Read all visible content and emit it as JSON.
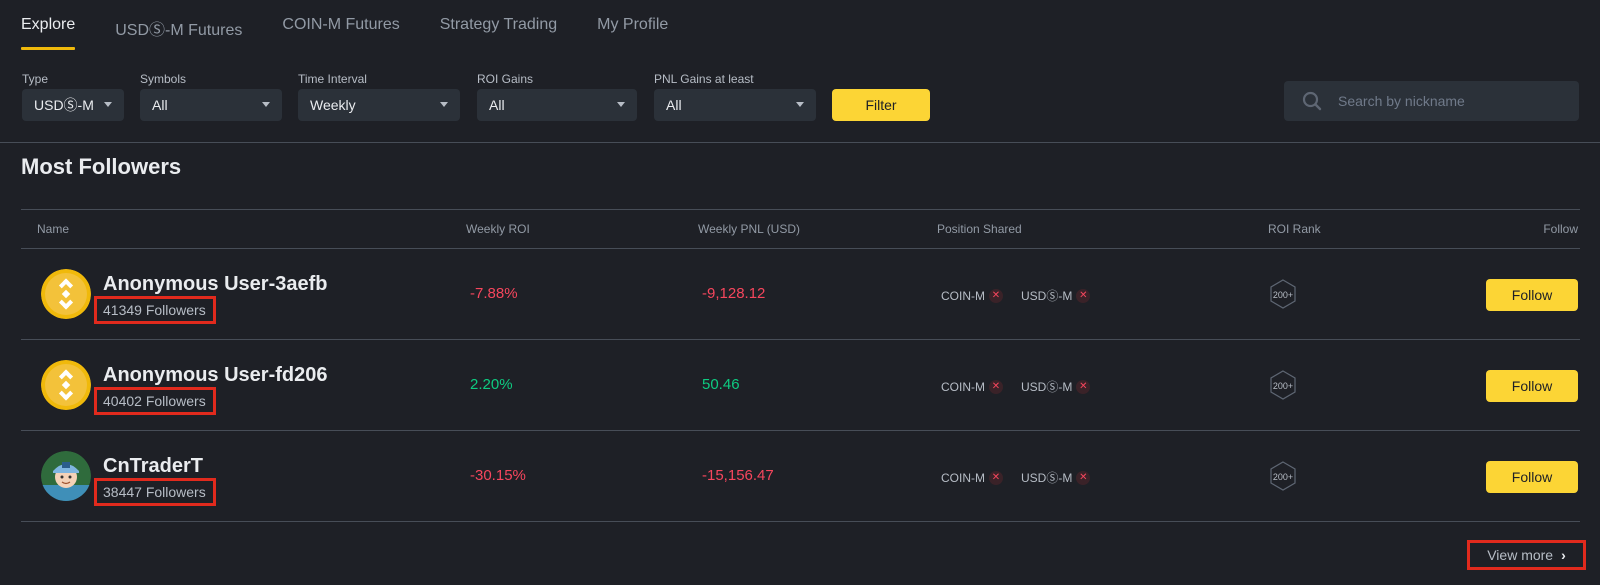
{
  "tabs": [
    {
      "label": "Explore",
      "active": true
    },
    {
      "label": "USDⓈ-M Futures"
    },
    {
      "label": "COIN-M Futures"
    },
    {
      "label": "Strategy Trading"
    },
    {
      "label": "My Profile"
    }
  ],
  "filters": {
    "type": {
      "label": "Type",
      "value": "USDⓈ-M"
    },
    "symbols": {
      "label": "Symbols",
      "value": "All"
    },
    "time_interval": {
      "label": "Time Interval",
      "value": "Weekly"
    },
    "roi_gains": {
      "label": "ROI Gains",
      "value": "All"
    },
    "pnl_gains": {
      "label": "PNL Gains at least",
      "value": "All"
    },
    "filter_button": "Filter"
  },
  "search": {
    "placeholder": "Search by nickname"
  },
  "section_title": "Most Followers",
  "table": {
    "headers": {
      "name": "Name",
      "roi": "Weekly ROI",
      "pnl": "Weekly PNL (USD)",
      "position": "Position Shared",
      "rank": "ROI Rank",
      "follow": "Follow"
    },
    "rows": [
      {
        "name": "Anonymous User-3aefb",
        "followers": "41349 Followers",
        "roi": "-7.88%",
        "pnl": "-9,128.12",
        "coin_m": "COIN-M",
        "usd_m": "USDⓈ-M",
        "rank": "200+",
        "follow": "Follow"
      },
      {
        "name": "Anonymous User-fd206",
        "followers": "40402 Followers",
        "roi": "2.20%",
        "pnl": "50.46",
        "coin_m": "COIN-M",
        "usd_m": "USDⓈ-M",
        "rank": "200+",
        "follow": "Follow"
      },
      {
        "name": "CnTraderT",
        "followers": "38447 Followers",
        "roi": "-30.15%",
        "pnl": "-15,156.47",
        "coin_m": "COIN-M",
        "usd_m": "USDⓈ-M",
        "rank": "200+",
        "follow": "Follow"
      }
    ]
  },
  "view_more": "View more",
  "colors": {
    "accent": "#fcd535",
    "negative": "#f6465d",
    "positive": "#0ecb81",
    "background": "#1e2026",
    "highlight": "#e12a1d"
  }
}
